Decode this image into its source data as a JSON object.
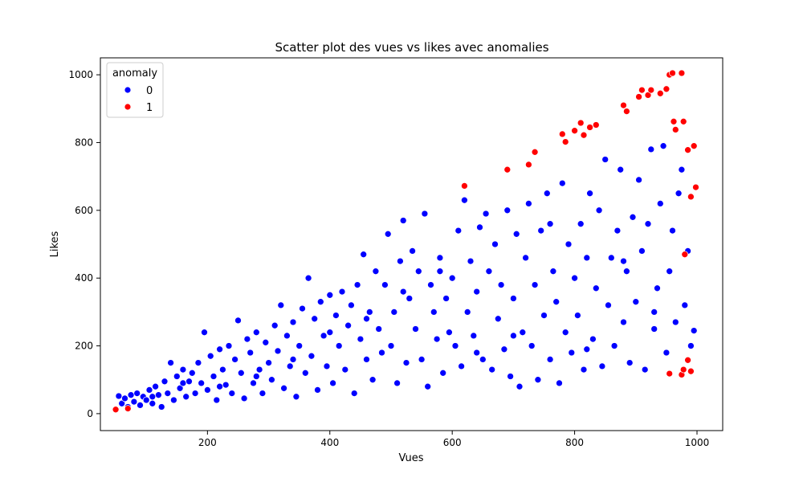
{
  "chart_data": {
    "type": "scatter",
    "title": "Scatter plot des vues vs likes avec anomalies",
    "xlabel": "Vues",
    "ylabel": "Likes",
    "xlim": [
      25,
      1042
    ],
    "ylim": [
      -50,
      1050
    ],
    "x_ticks": [
      200,
      400,
      600,
      800,
      1000
    ],
    "y_ticks": [
      0,
      200,
      400,
      600,
      800,
      1000
    ],
    "grid": false,
    "legend": {
      "title": "anomaly",
      "placement": "top-left",
      "entries": [
        {
          "label": "0",
          "color": "#0000ff"
        },
        {
          "label": "1",
          "color": "#ff0000"
        }
      ]
    },
    "series": [
      {
        "name": "0",
        "color": "#0000ff",
        "points": [
          [
            55,
            52
          ],
          [
            60,
            30
          ],
          [
            65,
            45
          ],
          [
            70,
            20
          ],
          [
            75,
            55
          ],
          [
            80,
            35
          ],
          [
            85,
            60
          ],
          [
            90,
            25
          ],
          [
            95,
            50
          ],
          [
            100,
            40
          ],
          [
            105,
            70
          ],
          [
            110,
            30
          ],
          [
            115,
            80
          ],
          [
            120,
            55
          ],
          [
            125,
            20
          ],
          [
            130,
            95
          ],
          [
            135,
            60
          ],
          [
            140,
            150
          ],
          [
            145,
            40
          ],
          [
            150,
            110
          ],
          [
            155,
            75
          ],
          [
            160,
            130
          ],
          [
            165,
            50
          ],
          [
            170,
            95
          ],
          [
            175,
            120
          ],
          [
            180,
            60
          ],
          [
            185,
            150
          ],
          [
            190,
            90
          ],
          [
            195,
            240
          ],
          [
            200,
            70
          ],
          [
            205,
            170
          ],
          [
            210,
            110
          ],
          [
            215,
            40
          ],
          [
            220,
            190
          ],
          [
            225,
            130
          ],
          [
            230,
            85
          ],
          [
            235,
            200
          ],
          [
            240,
            60
          ],
          [
            245,
            160
          ],
          [
            250,
            275
          ],
          [
            255,
            120
          ],
          [
            260,
            45
          ],
          [
            265,
            220
          ],
          [
            270,
            180
          ],
          [
            275,
            90
          ],
          [
            280,
            240
          ],
          [
            285,
            130
          ],
          [
            290,
            60
          ],
          [
            295,
            210
          ],
          [
            300,
            150
          ],
          [
            305,
            100
          ],
          [
            310,
            260
          ],
          [
            315,
            185
          ],
          [
            320,
            320
          ],
          [
            325,
            75
          ],
          [
            330,
            230
          ],
          [
            335,
            140
          ],
          [
            340,
            270
          ],
          [
            345,
            50
          ],
          [
            350,
            200
          ],
          [
            355,
            310
          ],
          [
            360,
            120
          ],
          [
            365,
            400
          ],
          [
            370,
            170
          ],
          [
            375,
            280
          ],
          [
            380,
            70
          ],
          [
            385,
            330
          ],
          [
            390,
            230
          ],
          [
            395,
            140
          ],
          [
            400,
            350
          ],
          [
            405,
            90
          ],
          [
            410,
            290
          ],
          [
            415,
            200
          ],
          [
            420,
            360
          ],
          [
            425,
            130
          ],
          [
            430,
            260
          ],
          [
            435,
            320
          ],
          [
            440,
            60
          ],
          [
            445,
            380
          ],
          [
            450,
            220
          ],
          [
            455,
            470
          ],
          [
            460,
            160
          ],
          [
            465,
            300
          ],
          [
            470,
            100
          ],
          [
            475,
            420
          ],
          [
            480,
            250
          ],
          [
            485,
            180
          ],
          [
            490,
            380
          ],
          [
            495,
            530
          ],
          [
            500,
            200
          ],
          [
            505,
            300
          ],
          [
            510,
            90
          ],
          [
            515,
            450
          ],
          [
            520,
            570
          ],
          [
            525,
            150
          ],
          [
            530,
            340
          ],
          [
            535,
            480
          ],
          [
            540,
            250
          ],
          [
            545,
            420
          ],
          [
            550,
            160
          ],
          [
            555,
            590
          ],
          [
            560,
            80
          ],
          [
            565,
            380
          ],
          [
            570,
            300
          ],
          [
            575,
            220
          ],
          [
            580,
            460
          ],
          [
            585,
            120
          ],
          [
            590,
            340
          ],
          [
            595,
            240
          ],
          [
            600,
            400
          ],
          [
            605,
            200
          ],
          [
            610,
            540
          ],
          [
            615,
            140
          ],
          [
            620,
            630
          ],
          [
            625,
            300
          ],
          [
            630,
            450
          ],
          [
            635,
            230
          ],
          [
            640,
            360
          ],
          [
            645,
            550
          ],
          [
            650,
            160
          ],
          [
            655,
            590
          ],
          [
            660,
            420
          ],
          [
            665,
            130
          ],
          [
            670,
            500
          ],
          [
            675,
            280
          ],
          [
            680,
            380
          ],
          [
            685,
            190
          ],
          [
            690,
            600
          ],
          [
            695,
            110
          ],
          [
            700,
            340
          ],
          [
            705,
            530
          ],
          [
            710,
            80
          ],
          [
            715,
            240
          ],
          [
            720,
            460
          ],
          [
            725,
            620
          ],
          [
            730,
            200
          ],
          [
            735,
            380
          ],
          [
            740,
            100
          ],
          [
            745,
            540
          ],
          [
            750,
            290
          ],
          [
            755,
            650
          ],
          [
            760,
            160
          ],
          [
            765,
            420
          ],
          [
            770,
            330
          ],
          [
            775,
            90
          ],
          [
            780,
            680
          ],
          [
            785,
            240
          ],
          [
            790,
            500
          ],
          [
            795,
            180
          ],
          [
            800,
            400
          ],
          [
            805,
            290
          ],
          [
            810,
            560
          ],
          [
            815,
            130
          ],
          [
            820,
            460
          ],
          [
            825,
            650
          ],
          [
            830,
            220
          ],
          [
            835,
            370
          ],
          [
            840,
            600
          ],
          [
            845,
            140
          ],
          [
            850,
            750
          ],
          [
            855,
            320
          ],
          [
            860,
            460
          ],
          [
            865,
            200
          ],
          [
            870,
            540
          ],
          [
            875,
            720
          ],
          [
            880,
            270
          ],
          [
            885,
            420
          ],
          [
            890,
            150
          ],
          [
            895,
            580
          ],
          [
            900,
            330
          ],
          [
            905,
            690
          ],
          [
            910,
            480
          ],
          [
            915,
            130
          ],
          [
            920,
            560
          ],
          [
            925,
            780
          ],
          [
            930,
            250
          ],
          [
            935,
            370
          ],
          [
            940,
            620
          ],
          [
            945,
            790
          ],
          [
            950,
            180
          ],
          [
            955,
            420
          ],
          [
            960,
            540
          ],
          [
            965,
            270
          ],
          [
            970,
            650
          ],
          [
            975,
            720
          ],
          [
            980,
            320
          ],
          [
            985,
            480
          ],
          [
            990,
            200
          ],
          [
            995,
            245
          ],
          [
            930,
            300
          ],
          [
            880,
            450
          ],
          [
            820,
            190
          ],
          [
            760,
            560
          ],
          [
            700,
            230
          ],
          [
            640,
            180
          ],
          [
            580,
            420
          ],
          [
            520,
            360
          ],
          [
            460,
            280
          ],
          [
            400,
            240
          ],
          [
            340,
            160
          ],
          [
            280,
            110
          ],
          [
            220,
            80
          ],
          [
            160,
            90
          ],
          [
            110,
            50
          ]
        ]
      },
      {
        "name": "1",
        "color": "#ff0000",
        "points": [
          [
            50,
            12
          ],
          [
            70,
            15
          ],
          [
            620,
            672
          ],
          [
            690,
            720
          ],
          [
            725,
            735
          ],
          [
            735,
            772
          ],
          [
            780,
            825
          ],
          [
            785,
            802
          ],
          [
            800,
            835
          ],
          [
            810,
            858
          ],
          [
            815,
            822
          ],
          [
            825,
            845
          ],
          [
            835,
            852
          ],
          [
            880,
            910
          ],
          [
            885,
            892
          ],
          [
            905,
            935
          ],
          [
            910,
            955
          ],
          [
            920,
            940
          ],
          [
            925,
            955
          ],
          [
            940,
            945
          ],
          [
            950,
            958
          ],
          [
            955,
            1000
          ],
          [
            960,
            1005
          ],
          [
            962,
            862
          ],
          [
            965,
            838
          ],
          [
            975,
            1005
          ],
          [
            978,
            862
          ],
          [
            980,
            470
          ],
          [
            985,
            778
          ],
          [
            990,
            640
          ],
          [
            995,
            790
          ],
          [
            998,
            668
          ],
          [
            955,
            118
          ],
          [
            975,
            115
          ],
          [
            978,
            130
          ],
          [
            985,
            158
          ],
          [
            990,
            125
          ]
        ]
      }
    ]
  }
}
